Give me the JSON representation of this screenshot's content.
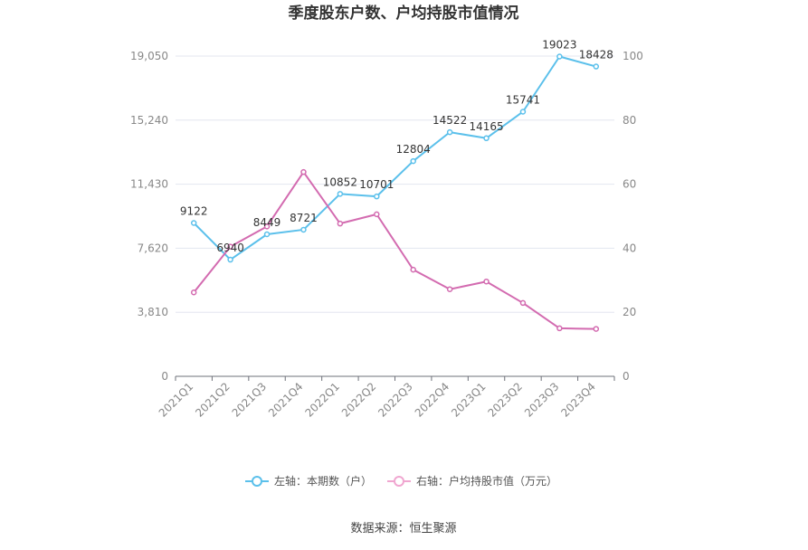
{
  "chart_data": {
    "type": "line",
    "title": "季度股东户数、户均持股市值情况",
    "categories": [
      "2021Q1",
      "2021Q2",
      "2021Q3",
      "2021Q4",
      "2022Q1",
      "2022Q2",
      "2022Q3",
      "2022Q4",
      "2023Q1",
      "2023Q2",
      "2023Q3",
      "2023Q4"
    ],
    "left_axis": {
      "ticks": [
        "0",
        "3,810",
        "7,620",
        "11,430",
        "15,240",
        "19,050"
      ],
      "ylim": [
        0,
        19050
      ]
    },
    "right_axis": {
      "ticks": [
        "0",
        "20",
        "40",
        "60",
        "80",
        "100"
      ],
      "ylim": [
        0,
        100
      ]
    },
    "series": [
      {
        "name": "左轴：本期数（户）",
        "axis": "left",
        "color": "#5bc0eb",
        "values": [
          9122,
          6940,
          8449,
          8721,
          10852,
          10701,
          12804,
          14522,
          14165,
          15741,
          19023,
          18428
        ],
        "labels": [
          "9122",
          "6940",
          "8449",
          "8721",
          "10852",
          "10701",
          "12804",
          "14522",
          "14165",
          "15741",
          "19023",
          "18428"
        ]
      },
      {
        "name": "右轴：户均持股市值（万元）",
        "axis": "right",
        "color": "#d36bb0",
        "values": [
          26.2,
          40.5,
          46.8,
          63.8,
          47.7,
          50.6,
          33.3,
          27.2,
          29.6,
          22.9,
          15.0,
          14.8
        ]
      }
    ],
    "grid": true,
    "legend_position": "bottom"
  },
  "footer": {
    "source": "数据来源：恒生聚源"
  }
}
